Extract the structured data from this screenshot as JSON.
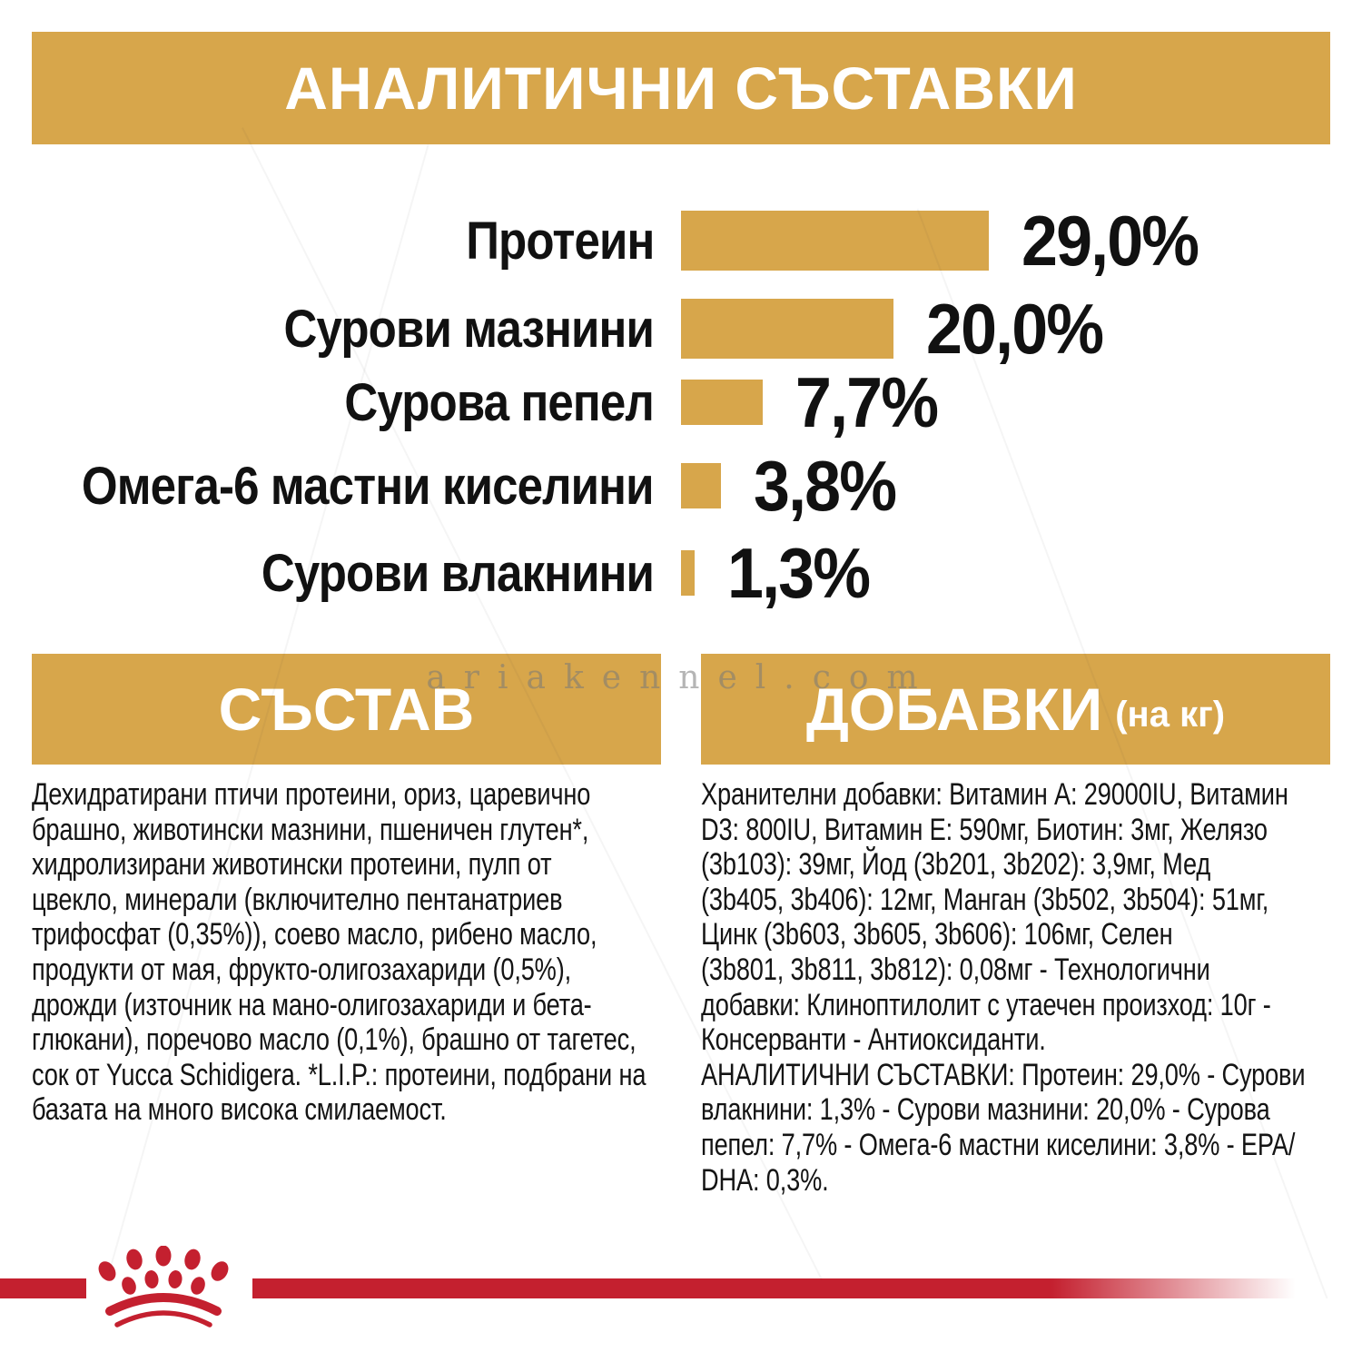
{
  "page": {
    "background": "#ffffff",
    "accent_gold": "#D7A64B",
    "brand_red": "#C4202F",
    "text_color": "#111111"
  },
  "header": {
    "title": "АНАЛИТИЧНИ СЪСТАВКИ"
  },
  "chart_data": {
    "type": "bar",
    "orientation": "horizontal",
    "categories": [
      "Протеин",
      "Сурови мазнини",
      "Сурова пепел",
      "Омега-6 мастни киселини",
      "Сурови влакнини"
    ],
    "values": [
      29.0,
      20.0,
      7.7,
      3.8,
      1.3
    ],
    "value_labels": [
      "29,0%",
      "20,0%",
      "7,7%",
      "3,8%",
      "1,3%"
    ],
    "bar_color": "#D7A64B",
    "xlim": [
      0,
      30
    ],
    "grid": false,
    "legend": false
  },
  "composition": {
    "title": "СЪСТАВ",
    "lines": [
      "Дехидратирани птичи протеини, ориз, царевично",
      "брашно, животински мазнини, пшеничен глутен*,",
      "хидролизирани животински протеини, пулп от",
      "цвекло, минерали (включително пентанатриев",
      "трифосфат (0,35%)), соево масло, рибено масло,",
      "продукти от мая, фрукто-олигозахариди (0,5%),",
      "дрожди (източник на мано-олигозахариди и бета-",
      "глюкани), поречово масло (0,1%), брашно от тагетес,",
      "сок от Yucca Schidigera. *L.I.P.: протеини, подбрани на",
      "базата на много висока смилаемост."
    ]
  },
  "additives": {
    "title": "ДОБАВКИ",
    "title_suffix": "(на кг)",
    "lines": [
      "Хранителни добавки: Витамин А: 29000IU, Витамин",
      "D3: 800IU, Витамин Е: 590мг, Биотин: 3мг, Желязо",
      "(3b103): 39мг, Йод (3b201, 3b202): 3,9мг, Мед",
      "(3b405, 3b406): 12мг, Манган (3b502, 3b504): 51мг,",
      "Цинк (3b603, 3b605, 3b606): 106мг, Селен",
      "(3b801, 3b811, 3b812): 0,08мг - Технологични",
      "добавки: Клиноптилолит с утаечен произход: 10г -",
      "Консерванти - Антиоксиданти.",
      "АНАЛИТИЧНИ СЪСТАВКИ: Протеин: 29,0% - Сурови",
      "влакнини: 1,3% - Сурови мазнини: 20,0% - Сурова",
      "пепел: 7,7% - Омега-6 мастни киселини: 3,8% - EPA/",
      "DHA: 0,3%."
    ]
  },
  "watermark": {
    "text": "ariakennel.com"
  },
  "footer": {
    "logo_icon": "royal-canin-crown-logo"
  }
}
